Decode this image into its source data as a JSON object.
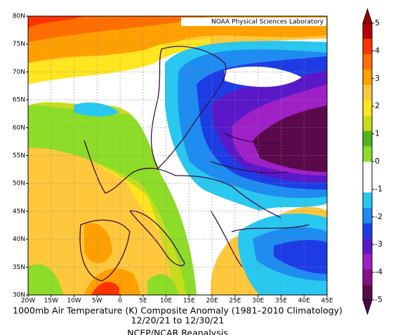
{
  "map": {
    "credit": "NOAA Physical Sciences Laboratory",
    "title": "1000mb Air Temperature (K) Composite Anomaly (1981–2010 Climatology)",
    "dates": "12/20/21  to 12/30/21",
    "source": "NCEP/NCAR Reanalysis",
    "xlim": [
      -20,
      45
    ],
    "ylim": [
      30,
      80
    ],
    "xticks": [
      {
        "value": -20,
        "label": "20W"
      },
      {
        "value": -15,
        "label": "15W"
      },
      {
        "value": -10,
        "label": "10W"
      },
      {
        "value": -5,
        "label": "5W"
      },
      0,
      {
        "value": 5,
        "label": "5E"
      },
      {
        "value": 10,
        "label": "10E"
      },
      {
        "value": 15,
        "label": "15E"
      },
      {
        "value": 20,
        "label": "20E"
      },
      {
        "value": 25,
        "label": "25E"
      },
      {
        "value": 30,
        "label": "30E"
      },
      {
        "value": 35,
        "label": "35E"
      },
      {
        "value": 40,
        "label": "40E"
      },
      {
        "value": 45,
        "label": "45E"
      }
    ],
    "yticks": [
      {
        "value": 30,
        "label": "30N"
      },
      {
        "value": 35,
        "label": "35N"
      },
      {
        "value": 40,
        "label": "40N"
      },
      {
        "value": 45,
        "label": "45N"
      },
      {
        "value": 50,
        "label": "50N"
      },
      {
        "value": 55,
        "label": "55N"
      },
      {
        "value": 60,
        "label": "60N"
      },
      {
        "value": 65,
        "label": "65N"
      },
      {
        "value": 70,
        "label": "70N"
      },
      {
        "value": 75,
        "label": "75N"
      },
      {
        "value": 80,
        "label": "80N"
      }
    ],
    "grid": true,
    "colorbar": {
      "lim": [
        -5,
        5
      ],
      "ticks": [
        5,
        4,
        3,
        2,
        1,
        0,
        -1,
        -2,
        -3,
        -4,
        -5
      ],
      "colors": [
        "#5a0a4a",
        "#8a0f8a",
        "#a020c8",
        "#5a18c8",
        "#1e3ce6",
        "#1e8cf0",
        "#28c8f0",
        "#ffffff",
        "#ffffff",
        "#8cdc28",
        "#50b41e",
        "#c8dc1e",
        "#ffe61e",
        "#ffc83c",
        "#ffa000",
        "#ff6e00",
        "#ff3200",
        "#b40000"
      ],
      "low_color": "#50064a",
      "high_color": "#a00000"
    }
  }
}
